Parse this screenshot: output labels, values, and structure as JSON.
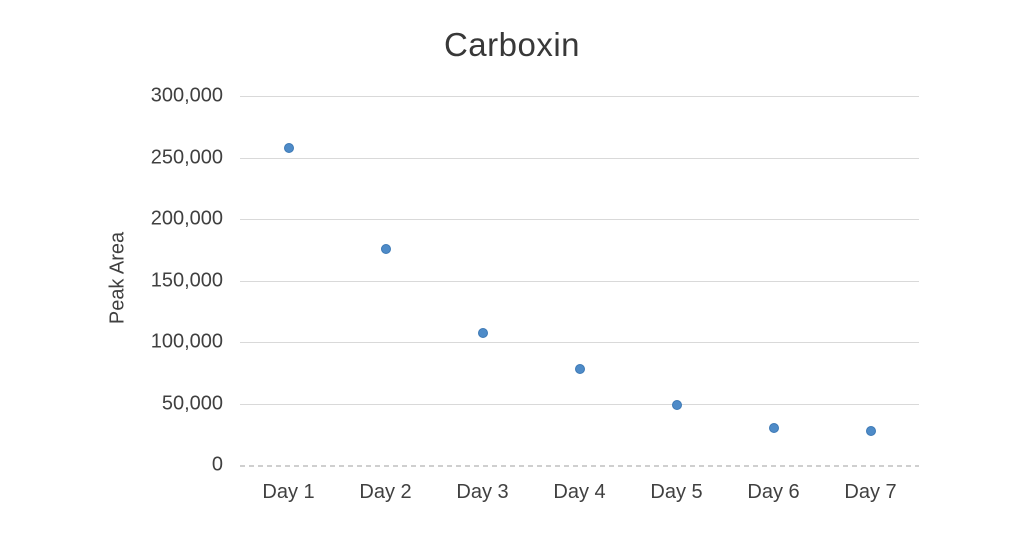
{
  "chart_data": {
    "type": "scatter",
    "title": "Carboxin",
    "xlabel": "",
    "ylabel": "Peak Area",
    "categories": [
      "Day 1",
      "Day 2",
      "Day 3",
      "Day 4",
      "Day 5",
      "Day 6",
      "Day 7"
    ],
    "values": [
      258000,
      176000,
      107000,
      78000,
      49000,
      30000,
      28000
    ],
    "ylim": [
      0,
      300000
    ],
    "ytick_step": 50000,
    "ytick_labels": [
      "0",
      "50,000",
      "100,000",
      "150,000",
      "200,000",
      "250,000",
      "300,000"
    ],
    "grid": true,
    "legend_position": "none",
    "marker_color": "#4e8bc8",
    "marker_border_color": "#3d79b5",
    "gridline_color": "#d9d9d9",
    "zero_line_style": "dashed",
    "text_color": "#404040"
  }
}
